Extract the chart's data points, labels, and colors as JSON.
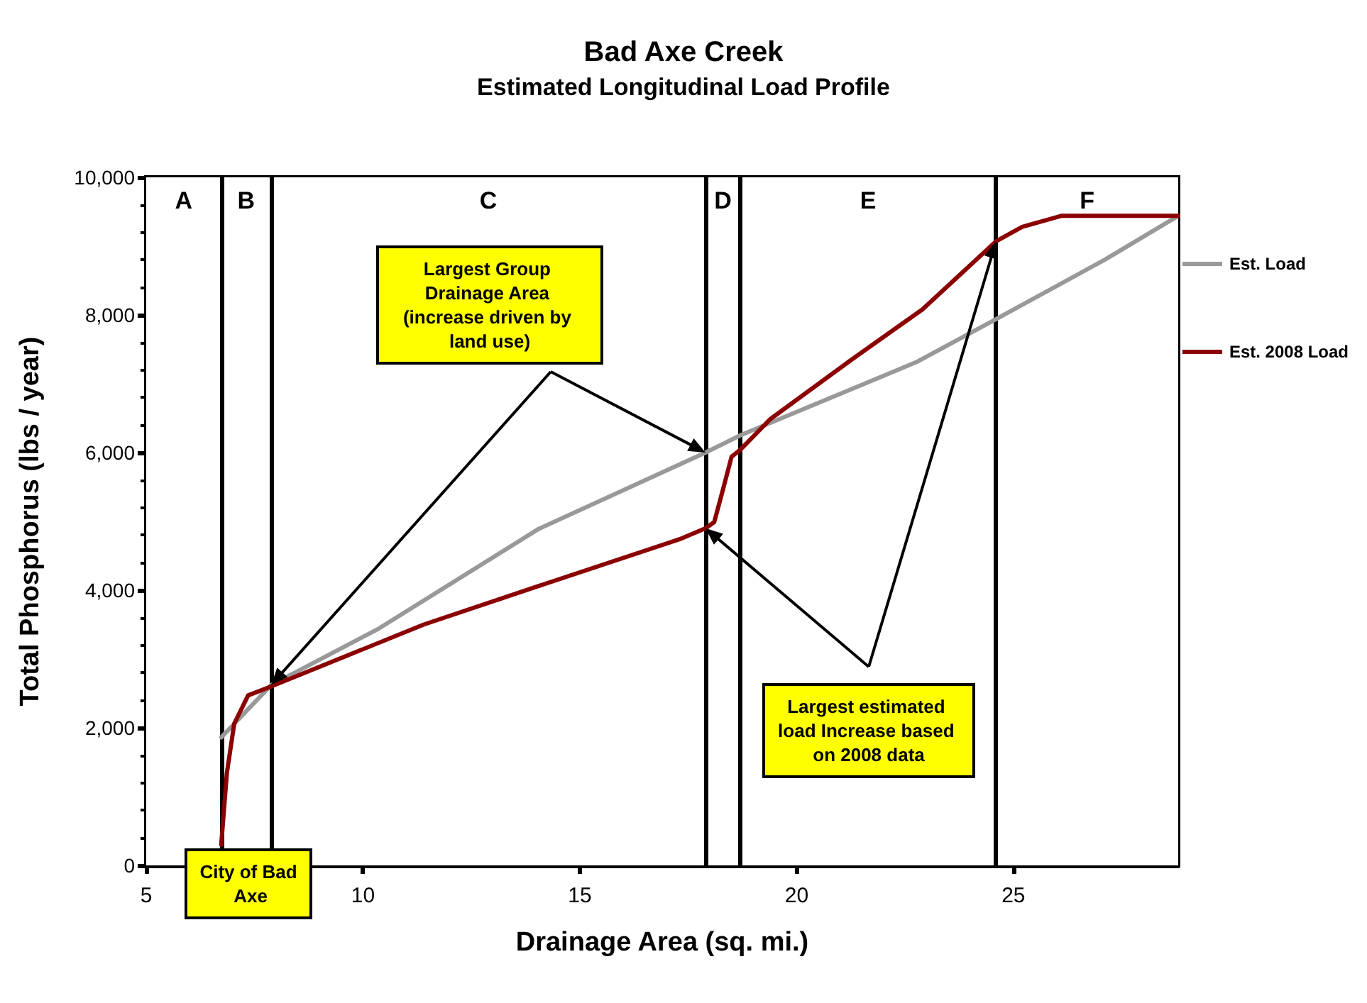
{
  "chart_data": {
    "type": "line",
    "title": "Bad Axe Creek",
    "subtitle": "Estimated Longitudinal Load Profile",
    "xlabel": "Drainage Area (sq. mi.)",
    "ylabel": "Total Phosphorus (lbs / year)",
    "xlim": [
      5,
      28.8
    ],
    "xticks": [
      5,
      10,
      15,
      20,
      25
    ],
    "ylim": [
      0,
      10000
    ],
    "yticks": [
      0,
      {
        "value": 2000,
        "label": "2,000"
      },
      {
        "value": 4000,
        "label": "4,000"
      },
      {
        "value": 6000,
        "label": "6,000"
      },
      {
        "value": 8000,
        "label": "8,000"
      },
      {
        "value": 10000,
        "label": "10,000"
      }
    ],
    "legend": "right",
    "marker": "none",
    "line_style": "solid",
    "series": [
      {
        "name": "Est. Load",
        "color": "#999999",
        "x": [
          6.73,
          7.88,
          10.36,
          14.05,
          17.9,
          18.7,
          22.78,
          24.6,
          27.1,
          28.8
        ],
        "values": [
          1860,
          2620,
          3440,
          4890,
          6000,
          6250,
          7320,
          7940,
          8800,
          9440
        ]
      },
      {
        "name": "Est. 2008 Load",
        "color": "#8b0000",
        "x": [
          6.73,
          6.86,
          7.03,
          7.35,
          7.88,
          11.4,
          14.05,
          17.3,
          17.9,
          18.1,
          18.3,
          18.5,
          18.7,
          19.4,
          21.2,
          22.9,
          24.6,
          25.2,
          26.1,
          28.8
        ],
        "values": [
          300,
          1340,
          2060,
          2470,
          2600,
          3500,
          4060,
          4740,
          4900,
          4990,
          5460,
          5940,
          6040,
          6490,
          7320,
          8080,
          9070,
          9280,
          9440,
          9440
        ]
      }
    ],
    "ref_lines": [
      {
        "axis": "x",
        "value": 6.73,
        "color": "#000000"
      },
      {
        "axis": "x",
        "value": 7.88,
        "color": "#000000"
      },
      {
        "axis": "x",
        "value": 17.9,
        "color": "#000000"
      },
      {
        "axis": "x",
        "value": 18.7,
        "color": "#000000"
      },
      {
        "axis": "x",
        "value": 24.6,
        "color": "#000000"
      }
    ],
    "bands": [
      {
        "axis": "x",
        "from": 5,
        "to": 6.73,
        "label": "A",
        "color": "#ffffff"
      },
      {
        "axis": "x",
        "from": 6.73,
        "to": 7.88,
        "label": "B",
        "color": "#ffffff"
      },
      {
        "axis": "x",
        "from": 7.88,
        "to": 17.9,
        "label": "C",
        "color": "#ffffff"
      },
      {
        "axis": "x",
        "from": 17.9,
        "to": 18.7,
        "label": "D",
        "color": "#ffffff"
      },
      {
        "axis": "x",
        "from": 18.7,
        "to": 24.6,
        "label": "E",
        "color": "#ffffff"
      },
      {
        "axis": "x",
        "from": 24.6,
        "to": 28.8,
        "label": "F",
        "color": "#ffffff"
      }
    ],
    "annotations": [
      "Largest Group Drainage Area (increase driven by land use)",
      "City of Bad Axe",
      "Largest estimated load Increase based on 2008 data"
    ]
  }
}
